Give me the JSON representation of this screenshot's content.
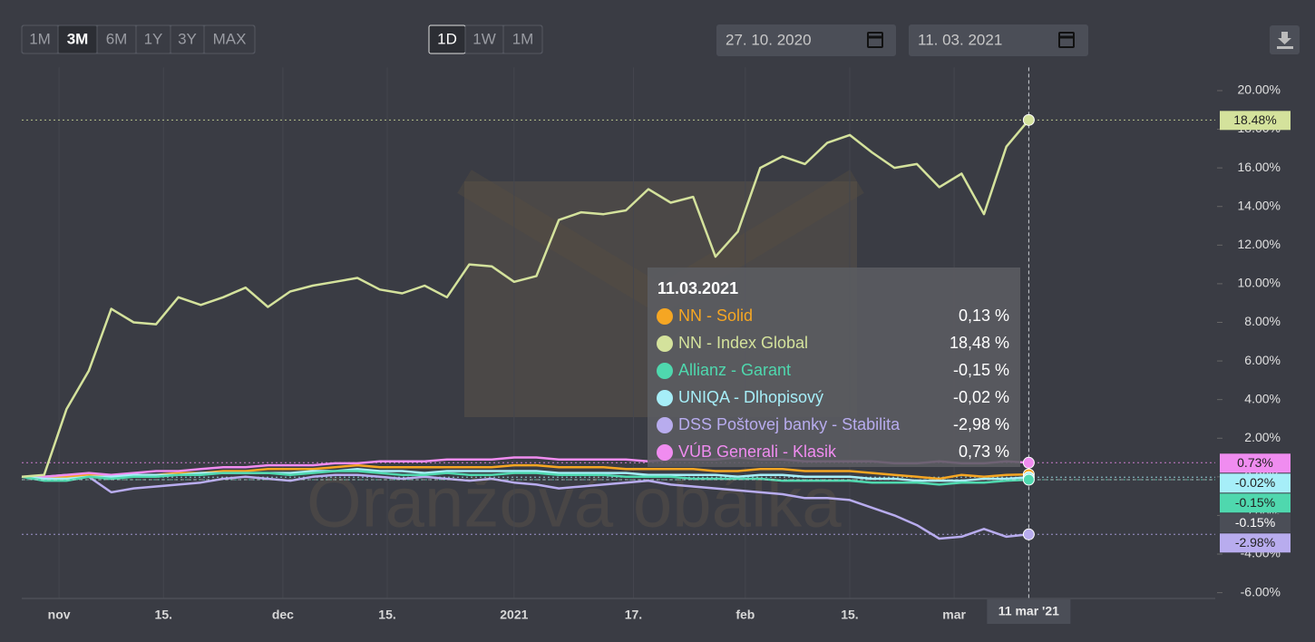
{
  "chart_data": {
    "type": "line",
    "controls": {
      "ranges": [
        "1M",
        "3M",
        "6M",
        "1Y",
        "3Y",
        "MAX"
      ],
      "active_range_index": 1,
      "intervals": [
        "1D",
        "1W",
        "1M"
      ],
      "active_interval_index": 0,
      "date_from": "27. 10. 2020",
      "date_to": "11. 03. 2021"
    },
    "watermark": "Oranžová obálka",
    "x": [
      "2020-10-27",
      "2020-10-30",
      "2020-11-02",
      "2020-11-05",
      "2020-11-08",
      "2020-11-11",
      "2020-11-14",
      "2020-11-17",
      "2020-11-20",
      "2020-11-23",
      "2020-11-26",
      "2020-11-29",
      "2020-12-02",
      "2020-12-05",
      "2020-12-08",
      "2020-12-11",
      "2020-12-14",
      "2020-12-17",
      "2020-12-20",
      "2020-12-23",
      "2020-12-26",
      "2020-12-29",
      "2021-01-01",
      "2021-01-04",
      "2021-01-07",
      "2021-01-10",
      "2021-01-13",
      "2021-01-16",
      "2021-01-19",
      "2021-01-22",
      "2021-01-25",
      "2021-01-28",
      "2021-01-31",
      "2021-02-03",
      "2021-02-06",
      "2021-02-09",
      "2021-02-12",
      "2021-02-15",
      "2021-02-18",
      "2021-02-21",
      "2021-02-24",
      "2021-02-27",
      "2021-03-02",
      "2021-03-05",
      "2021-03-08",
      "2021-03-11"
    ],
    "xlim": [
      "2020-10-27",
      "2021-04-05"
    ],
    "xticks": [
      {
        "value": "2020-11-01",
        "label": "nov"
      },
      {
        "value": "2020-11-15",
        "label": "15."
      },
      {
        "value": "2020-12-01",
        "label": "dec"
      },
      {
        "value": "2020-12-15",
        "label": "15."
      },
      {
        "value": "2021-01-01",
        "label": "2021"
      },
      {
        "value": "2021-01-17",
        "label": "17."
      },
      {
        "value": "2021-02-01",
        "label": "feb"
      },
      {
        "value": "2021-02-15",
        "label": "15."
      },
      {
        "value": "2021-03-01",
        "label": "mar"
      }
    ],
    "ylim": [
      -6.3,
      21.2
    ],
    "yticks": [
      {
        "value": -6,
        "label": "-6.00%"
      },
      {
        "value": -4,
        "label": "-4.00%"
      },
      {
        "value": -2,
        "label": "-2.00%"
      },
      {
        "value": 0,
        "label": "0.00%"
      },
      {
        "value": 2,
        "label": "2.00%"
      },
      {
        "value": 4,
        "label": "4.00%"
      },
      {
        "value": 6,
        "label": "6.00%"
      },
      {
        "value": 8,
        "label": "8.00%"
      },
      {
        "value": 10,
        "label": "10.00%"
      },
      {
        "value": 12,
        "label": "12.00%"
      },
      {
        "value": 14,
        "label": "14.00%"
      },
      {
        "value": 16,
        "label": "16.00%"
      },
      {
        "value": 18,
        "label": "18.00%"
      },
      {
        "value": 20,
        "label": "20.00%"
      }
    ],
    "crosshair": {
      "x": "2021-03-11",
      "x_label": "11 mar '21",
      "y": -0.15,
      "y_label": "-0.15%",
      "tooltip_title": "11.03.2021"
    },
    "series": [
      {
        "name": "NN - Solid",
        "color": "#f5a623",
        "tooltip_label": "0,13 %",
        "values": [
          0,
          -0.1,
          0.0,
          0.1,
          0.0,
          0.1,
          0.1,
          0.2,
          0.2,
          0.3,
          0.3,
          0.4,
          0.4,
          0.4,
          0.5,
          0.6,
          0.5,
          0.5,
          0.5,
          0.5,
          0.5,
          0.5,
          0.6,
          0.6,
          0.5,
          0.5,
          0.5,
          0.4,
          0.4,
          0.4,
          0.4,
          0.3,
          0.3,
          0.4,
          0.4,
          0.3,
          0.3,
          0.3,
          0.2,
          0.1,
          0.0,
          -0.1,
          0.1,
          0.0,
          0.1,
          0.13
        ]
      },
      {
        "name": "NN - Index Global",
        "color": "#d4e29c",
        "tooltip_label": "18,48 %",
        "last_label": "18.48%",
        "values": [
          0,
          0.1,
          3.5,
          5.5,
          8.7,
          8.0,
          7.9,
          9.3,
          8.9,
          9.3,
          9.8,
          8.8,
          9.6,
          9.9,
          10.1,
          10.3,
          9.7,
          9.5,
          9.9,
          9.3,
          11.0,
          10.9,
          10.1,
          10.4,
          13.3,
          13.7,
          13.6,
          13.8,
          14.9,
          14.2,
          14.5,
          11.4,
          12.7,
          16.0,
          16.6,
          16.2,
          17.3,
          17.7,
          16.8,
          16.0,
          16.2,
          15.0,
          15.7,
          13.6,
          17.1,
          18.48
        ]
      },
      {
        "name": "Allianz - Garant",
        "color": "#4fd8ae",
        "tooltip_label": "-0,15 %",
        "last_label": "-0.15%",
        "values": [
          0,
          -0.2,
          -0.2,
          0.0,
          -0.1,
          0.0,
          0.0,
          0.1,
          0.1,
          0.2,
          0.2,
          0.2,
          0.1,
          0.2,
          0.3,
          0.3,
          0.2,
          0.1,
          0.1,
          0.2,
          0.1,
          0.1,
          0.2,
          0.2,
          0.1,
          0.1,
          0.1,
          0.0,
          0.0,
          0.0,
          -0.1,
          -0.1,
          -0.1,
          -0.1,
          -0.2,
          -0.2,
          -0.2,
          -0.2,
          -0.3,
          -0.3,
          -0.3,
          -0.4,
          -0.3,
          -0.3,
          -0.2,
          -0.15
        ]
      },
      {
        "name": "UNIQA - Dlhopisový",
        "color": "#a6eef8",
        "tooltip_label": "-0,02 %",
        "last_label": "-0.02%",
        "values": [
          0,
          -0.1,
          -0.1,
          0.0,
          0.0,
          0.1,
          0.1,
          0.1,
          0.2,
          0.2,
          0.2,
          0.2,
          0.2,
          0.3,
          0.3,
          0.4,
          0.3,
          0.3,
          0.2,
          0.3,
          0.3,
          0.3,
          0.3,
          0.3,
          0.2,
          0.2,
          0.2,
          0.2,
          0.1,
          0.1,
          0.1,
          0.1,
          0.0,
          0.1,
          0.1,
          0.0,
          0.0,
          0.0,
          -0.1,
          -0.1,
          -0.2,
          -0.2,
          -0.2,
          -0.1,
          -0.1,
          -0.02
        ]
      },
      {
        "name": "DSS Poštovej banky - Stabilita",
        "color": "#b8acee",
        "tooltip_label": "-2,98 %",
        "last_label": "-2.98%",
        "values": [
          0,
          0.0,
          0.1,
          0.0,
          -0.8,
          -0.6,
          -0.5,
          -0.4,
          -0.3,
          -0.1,
          0.0,
          -0.1,
          -0.2,
          0.0,
          0.1,
          0.1,
          0.0,
          -0.1,
          0.0,
          -0.1,
          -0.2,
          -0.1,
          -0.3,
          -0.4,
          -0.6,
          -0.5,
          -0.4,
          -0.3,
          -0.2,
          -0.4,
          -0.5,
          -0.6,
          -0.7,
          -0.8,
          -0.9,
          -1.1,
          -1.1,
          -1.2,
          -1.6,
          -2.0,
          -2.5,
          -3.2,
          -3.1,
          -2.7,
          -3.1,
          -2.98
        ]
      },
      {
        "name": "VÚB Generali - Klasik",
        "color": "#f08cf0",
        "tooltip_label": "0,73 %",
        "last_label": "0.73%",
        "values": [
          0,
          0.0,
          0.1,
          0.2,
          0.1,
          0.2,
          0.3,
          0.3,
          0.4,
          0.5,
          0.5,
          0.6,
          0.6,
          0.6,
          0.7,
          0.7,
          0.8,
          0.8,
          0.8,
          0.9,
          0.9,
          0.9,
          1.0,
          1.0,
          0.9,
          0.9,
          0.9,
          0.9,
          0.8,
          0.9,
          0.9,
          0.9,
          1.0,
          0.9,
          0.9,
          0.8,
          0.8,
          0.8,
          0.8,
          0.7,
          0.7,
          0.8,
          0.7,
          0.7,
          0.8,
          0.73
        ]
      }
    ]
  }
}
